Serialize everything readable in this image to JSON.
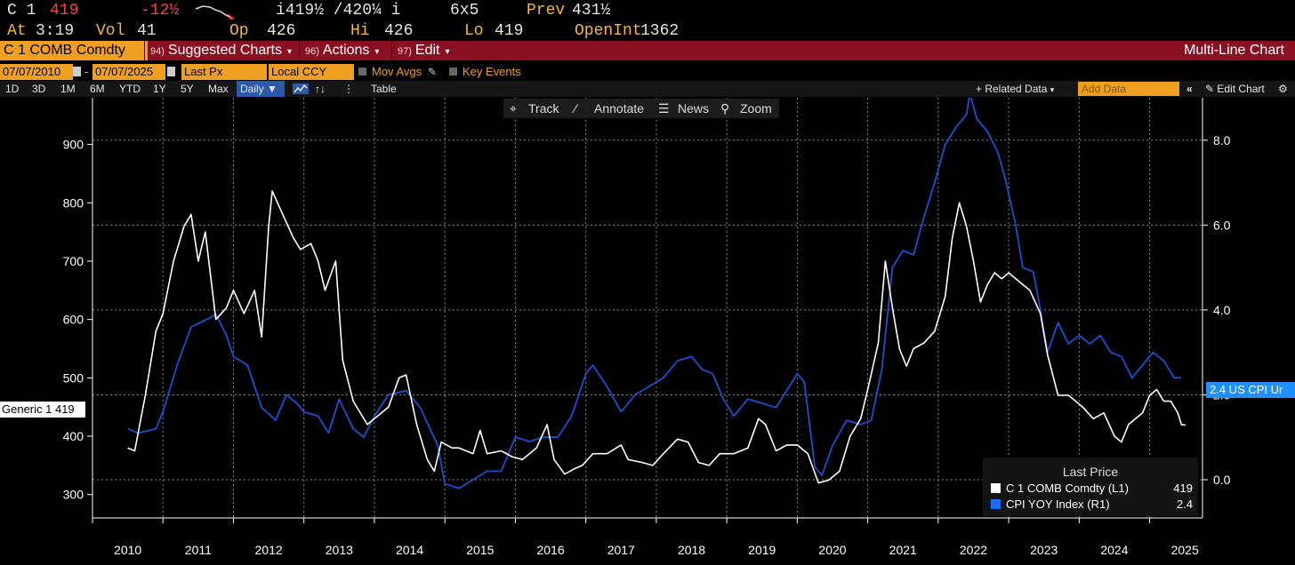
{
  "ticker": {
    "security": "C 1",
    "last": "419",
    "change": "-12½",
    "bid_ask": "i419½ /420¼ i",
    "size": "6x5",
    "prev_label": "Prev",
    "prev": "431½",
    "at_label": "At",
    "at": "3:19",
    "vol_label": "Vol",
    "vol": "41",
    "op_label": "Op",
    "op": "426",
    "hi_label": "Hi",
    "hi": "426",
    "lo_label": "Lo",
    "lo": "419",
    "oi_label": "OpenInt",
    "oi": "1362"
  },
  "titlebar": {
    "security": "C 1 COMB Comdty",
    "suggested_num": "94)",
    "suggested": "Suggested Charts",
    "actions_num": "96)",
    "actions": "Actions",
    "edit_num": "97)",
    "edit": "Edit",
    "chart_type": "Multi-Line Chart"
  },
  "options": {
    "start_date": "07/07/2010",
    "end_date": "07/07/2025",
    "field": "Last Px",
    "currency": "Local CCY",
    "mov_avgs": "Mov Avgs",
    "key_events": "Key Events"
  },
  "range": {
    "buttons": [
      "1D",
      "3D",
      "1M",
      "6M",
      "YTD",
      "1Y",
      "5Y",
      "Max"
    ],
    "frequency": "Daily",
    "table": "Table",
    "related_data": "+ Related Data",
    "add_data": "Add Data",
    "edit_chart": "Edit Chart"
  },
  "tools": {
    "track": "Track",
    "annotate": "Annotate",
    "news": "News",
    "zoom": "Zoom"
  },
  "legend": {
    "title": "Last Price",
    "rows": [
      {
        "name": "C 1 COMB Comdty  (L1)",
        "value": "419",
        "color": "#ffffff"
      },
      {
        "name": "CPI YOY Index  (R1)",
        "value": "2.4",
        "color": "#1e6bff"
      }
    ]
  },
  "tags": {
    "left": "Generic 1 419",
    "right": "2.4 US CPI Ur"
  },
  "colors": {
    "accent": "#f0a020",
    "titlebar": "#8a1021",
    "corn": "#ffffff",
    "cpi": "#1e4fd0",
    "tag_blue": "#1e90ff"
  },
  "chart_data": {
    "type": "line",
    "x_ticks": [
      "2010",
      "2011",
      "2012",
      "2013",
      "2014",
      "2015",
      "2016",
      "2017",
      "2018",
      "2019",
      "2020",
      "2021",
      "2022",
      "2023",
      "2024",
      "2025"
    ],
    "left_axis": {
      "ticks": [
        300,
        400,
        500,
        600,
        700,
        800,
        900
      ],
      "range": [
        260,
        980
      ]
    },
    "right_axis": {
      "ticks": [
        "0.0",
        "2.0",
        "4.0",
        "6.0",
        "8.0"
      ],
      "range": [
        -0.9,
        9.0
      ]
    },
    "grid": true,
    "series": [
      {
        "name": "C 1 COMB Comdty",
        "axis": "left",
        "points": [
          [
            2010.5,
            380
          ],
          [
            2010.6,
            375
          ],
          [
            2010.75,
            470
          ],
          [
            2010.9,
            580
          ],
          [
            2011.0,
            610
          ],
          [
            2011.15,
            700
          ],
          [
            2011.3,
            760
          ],
          [
            2011.4,
            780
          ],
          [
            2011.5,
            700
          ],
          [
            2011.6,
            750
          ],
          [
            2011.75,
            600
          ],
          [
            2011.9,
            620
          ],
          [
            2012.0,
            650
          ],
          [
            2012.15,
            610
          ],
          [
            2012.3,
            650
          ],
          [
            2012.4,
            570
          ],
          [
            2012.5,
            760
          ],
          [
            2012.55,
            820
          ],
          [
            2012.7,
            780
          ],
          [
            2012.85,
            740
          ],
          [
            2012.95,
            720
          ],
          [
            2013.1,
            730
          ],
          [
            2013.2,
            700
          ],
          [
            2013.3,
            650
          ],
          [
            2013.45,
            700
          ],
          [
            2013.55,
            530
          ],
          [
            2013.7,
            460
          ],
          [
            2013.9,
            420
          ],
          [
            2014.0,
            430
          ],
          [
            2014.2,
            450
          ],
          [
            2014.35,
            500
          ],
          [
            2014.45,
            505
          ],
          [
            2014.6,
            420
          ],
          [
            2014.75,
            360
          ],
          [
            2014.85,
            340
          ],
          [
            2014.95,
            390
          ],
          [
            2015.1,
            380
          ],
          [
            2015.2,
            380
          ],
          [
            2015.4,
            370
          ],
          [
            2015.5,
            410
          ],
          [
            2015.6,
            370
          ],
          [
            2015.8,
            375
          ],
          [
            2015.95,
            365
          ],
          [
            2016.1,
            360
          ],
          [
            2016.3,
            380
          ],
          [
            2016.45,
            420
          ],
          [
            2016.55,
            360
          ],
          [
            2016.7,
            335
          ],
          [
            2016.85,
            345
          ],
          [
            2016.95,
            350
          ],
          [
            2017.1,
            370
          ],
          [
            2017.3,
            370
          ],
          [
            2017.5,
            385
          ],
          [
            2017.6,
            360
          ],
          [
            2017.8,
            355
          ],
          [
            2017.95,
            350
          ],
          [
            2018.1,
            370
          ],
          [
            2018.3,
            395
          ],
          [
            2018.45,
            390
          ],
          [
            2018.6,
            355
          ],
          [
            2018.75,
            350
          ],
          [
            2018.9,
            370
          ],
          [
            2019.1,
            370
          ],
          [
            2019.3,
            380
          ],
          [
            2019.45,
            430
          ],
          [
            2019.55,
            420
          ],
          [
            2019.7,
            375
          ],
          [
            2019.85,
            385
          ],
          [
            2020.0,
            385
          ],
          [
            2020.15,
            370
          ],
          [
            2020.3,
            320
          ],
          [
            2020.45,
            325
          ],
          [
            2020.6,
            340
          ],
          [
            2020.75,
            400
          ],
          [
            2020.9,
            430
          ],
          [
            2021.0,
            480
          ],
          [
            2021.15,
            560
          ],
          [
            2021.25,
            700
          ],
          [
            2021.35,
            620
          ],
          [
            2021.45,
            550
          ],
          [
            2021.55,
            520
          ],
          [
            2021.65,
            550
          ],
          [
            2021.8,
            560
          ],
          [
            2021.95,
            580
          ],
          [
            2022.1,
            640
          ],
          [
            2022.2,
            740
          ],
          [
            2022.3,
            800
          ],
          [
            2022.4,
            760
          ],
          [
            2022.5,
            700
          ],
          [
            2022.6,
            630
          ],
          [
            2022.7,
            660
          ],
          [
            2022.8,
            680
          ],
          [
            2022.9,
            670
          ],
          [
            2023.0,
            680
          ],
          [
            2023.1,
            670
          ],
          [
            2023.2,
            660
          ],
          [
            2023.3,
            650
          ],
          [
            2023.45,
            610
          ],
          [
            2023.55,
            540
          ],
          [
            2023.7,
            470
          ],
          [
            2023.85,
            470
          ],
          [
            2023.95,
            460
          ],
          [
            2024.05,
            450
          ],
          [
            2024.2,
            430
          ],
          [
            2024.35,
            440
          ],
          [
            2024.5,
            400
          ],
          [
            2024.6,
            390
          ],
          [
            2024.7,
            420
          ],
          [
            2024.8,
            430
          ],
          [
            2024.9,
            440
          ],
          [
            2025.0,
            470
          ],
          [
            2025.1,
            480
          ],
          [
            2025.2,
            460
          ],
          [
            2025.3,
            460
          ],
          [
            2025.4,
            440
          ],
          [
            2025.45,
            420
          ],
          [
            2025.51,
            419
          ]
        ]
      },
      {
        "name": "CPI YOY Index",
        "axis": "right",
        "points": [
          [
            2010.5,
            1.2
          ],
          [
            2010.65,
            1.1
          ],
          [
            2010.9,
            1.2
          ],
          [
            2011.0,
            1.6
          ],
          [
            2011.2,
            2.7
          ],
          [
            2011.4,
            3.6
          ],
          [
            2011.65,
            3.8
          ],
          [
            2011.75,
            3.9
          ],
          [
            2011.9,
            3.4
          ],
          [
            2012.0,
            2.9
          ],
          [
            2012.2,
            2.7
          ],
          [
            2012.4,
            1.7
          ],
          [
            2012.6,
            1.4
          ],
          [
            2012.75,
            2.0
          ],
          [
            2012.9,
            1.8
          ],
          [
            2013.0,
            1.6
          ],
          [
            2013.2,
            1.5
          ],
          [
            2013.35,
            1.1
          ],
          [
            2013.5,
            1.9
          ],
          [
            2013.7,
            1.2
          ],
          [
            2013.85,
            1.0
          ],
          [
            2014.0,
            1.5
          ],
          [
            2014.2,
            2.0
          ],
          [
            2014.45,
            2.1
          ],
          [
            2014.65,
            1.7
          ],
          [
            2014.9,
            0.8
          ],
          [
            2015.0,
            -0.1
          ],
          [
            2015.2,
            -0.2
          ],
          [
            2015.4,
            0.0
          ],
          [
            2015.6,
            0.2
          ],
          [
            2015.8,
            0.2
          ],
          [
            2016.0,
            1.0
          ],
          [
            2016.2,
            0.9
          ],
          [
            2016.4,
            1.0
          ],
          [
            2016.6,
            1.0
          ],
          [
            2016.8,
            1.5
          ],
          [
            2017.0,
            2.5
          ],
          [
            2017.1,
            2.7
          ],
          [
            2017.3,
            2.2
          ],
          [
            2017.5,
            1.6
          ],
          [
            2017.7,
            2.0
          ],
          [
            2017.9,
            2.2
          ],
          [
            2018.1,
            2.4
          ],
          [
            2018.3,
            2.8
          ],
          [
            2018.5,
            2.9
          ],
          [
            2018.65,
            2.6
          ],
          [
            2018.8,
            2.5
          ],
          [
            2018.95,
            1.9
          ],
          [
            2019.1,
            1.5
          ],
          [
            2019.3,
            1.9
          ],
          [
            2019.5,
            1.8
          ],
          [
            2019.7,
            1.7
          ],
          [
            2019.85,
            2.1
          ],
          [
            2020.0,
            2.5
          ],
          [
            2020.1,
            2.3
          ],
          [
            2020.25,
            0.3
          ],
          [
            2020.35,
            0.1
          ],
          [
            2020.5,
            0.8
          ],
          [
            2020.7,
            1.4
          ],
          [
            2020.9,
            1.3
          ],
          [
            2021.05,
            1.4
          ],
          [
            2021.2,
            2.6
          ],
          [
            2021.35,
            5.0
          ],
          [
            2021.5,
            5.4
          ],
          [
            2021.65,
            5.3
          ],
          [
            2021.8,
            6.2
          ],
          [
            2021.95,
            7.0
          ],
          [
            2022.1,
            7.9
          ],
          [
            2022.25,
            8.3
          ],
          [
            2022.4,
            8.6
          ],
          [
            2022.45,
            9.1
          ],
          [
            2022.55,
            8.5
          ],
          [
            2022.7,
            8.2
          ],
          [
            2022.85,
            7.7
          ],
          [
            2022.95,
            7.1
          ],
          [
            2023.1,
            6.0
          ],
          [
            2023.2,
            5.0
          ],
          [
            2023.35,
            4.9
          ],
          [
            2023.45,
            4.0
          ],
          [
            2023.55,
            3.0
          ],
          [
            2023.7,
            3.7
          ],
          [
            2023.85,
            3.2
          ],
          [
            2024.0,
            3.4
          ],
          [
            2024.15,
            3.2
          ],
          [
            2024.3,
            3.4
          ],
          [
            2024.45,
            3.0
          ],
          [
            2024.6,
            2.9
          ],
          [
            2024.75,
            2.4
          ],
          [
            2024.9,
            2.7
          ],
          [
            2025.05,
            3.0
          ],
          [
            2025.2,
            2.8
          ],
          [
            2025.35,
            2.4
          ],
          [
            2025.45,
            2.4
          ]
        ]
      }
    ]
  }
}
